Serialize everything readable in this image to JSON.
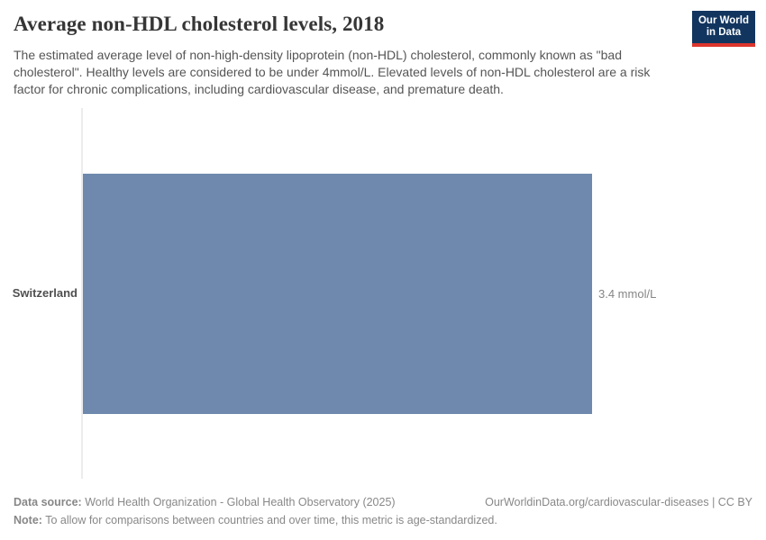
{
  "header": {
    "title": "Average non-HDL cholesterol levels, 2018",
    "subtitle": "The estimated average level of non-high-density lipoprotein (non-HDL) cholesterol, commonly known as \"bad cholesterol\". Healthy levels are considered to be under 4mmol/L. Elevated levels of non-HDL cholesterol are a risk factor for chronic complications, including cardiovascular disease, and premature death.",
    "logo": {
      "line1": "Our World",
      "line2": "in Data",
      "background_color": "#12355f",
      "accent_color": "#dc352c"
    }
  },
  "chart_data": {
    "type": "bar",
    "orientation": "horizontal",
    "title": "Average non-HDL cholesterol levels, 2018",
    "categories": [
      "Switzerland"
    ],
    "values": [
      3.4
    ],
    "unit": "mmol/L",
    "value_labels": [
      "3.4 mmol/L"
    ],
    "xlabel": "",
    "ylabel": "",
    "xlim": [
      0,
      3.4
    ],
    "grid": false,
    "legend": "none",
    "bar_color": "#6e89ad",
    "axis_line_color": "#ececec"
  },
  "footer": {
    "data_source_label": "Data source:",
    "data_source_text": " World Health Organization - Global Health Observatory (2025)",
    "note_label": "Note:",
    "note_text": " To allow for comparisons between countries and over time, this metric is age-standardized.",
    "link_text": "OurWorldinData.org/cardiovascular-diseases | CC BY"
  }
}
